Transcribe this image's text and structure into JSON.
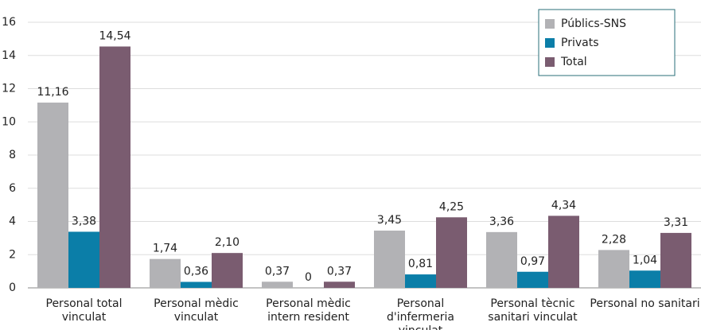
{
  "chart_data": {
    "type": "bar",
    "categories": [
      "Personal total\nvinculat",
      "Personal mèdic\nvinculat",
      "Personal mèdic\nintern resident",
      "Personal d'infermeria\nvinculat",
      "Personal tècnic\nsanitari vinculat",
      "Personal no sanitari"
    ],
    "series": [
      {
        "name": "Públics-SNS",
        "color": "#b2b2b5",
        "values": [
          11.16,
          1.74,
          0.37,
          3.45,
          3.36,
          2.28
        ],
        "value_labels": [
          "11,16",
          "1,74",
          "0,37",
          "3,45",
          "3,36",
          "2,28"
        ]
      },
      {
        "name": "Privats",
        "color": "#0b7ea8",
        "values": [
          3.38,
          0.36,
          0,
          0.81,
          0.97,
          1.04
        ],
        "value_labels": [
          "3,38",
          "0,36",
          "0",
          "0,81",
          "0,97",
          "1,04"
        ]
      },
      {
        "name": "Total",
        "color": "#7a5c70",
        "values": [
          14.54,
          2.1,
          0.37,
          4.25,
          4.34,
          3.31
        ],
        "value_labels": [
          "14,54",
          "2,10",
          "0,37",
          "4,25",
          "4,34",
          "3,31"
        ]
      }
    ],
    "ylim": [
      0,
      16
    ],
    "yticks": [
      0,
      2,
      4,
      6,
      8,
      10,
      12,
      14,
      16
    ],
    "grid": true,
    "legend": "top-right"
  }
}
